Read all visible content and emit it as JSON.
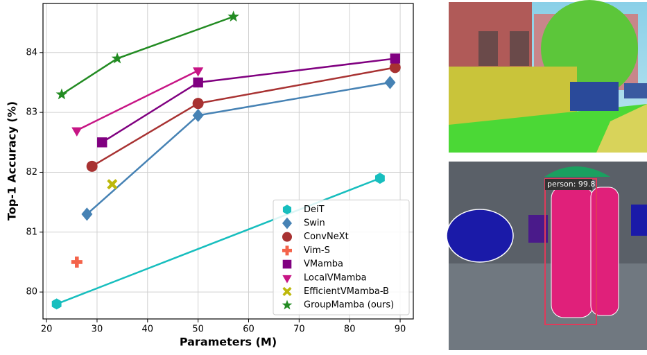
{
  "chart_data": {
    "type": "line",
    "xlabel": "Parameters (M)",
    "ylabel": "Top-1 Accuracy (%)",
    "xlim": [
      19.3,
      92.6
    ],
    "ylim": [
      79.55,
      84.82
    ],
    "xticks": [
      20,
      30,
      40,
      50,
      60,
      70,
      80,
      90
    ],
    "yticks": [
      80,
      81,
      82,
      83,
      84
    ],
    "grid": true,
    "legend": "lower right",
    "series": [
      {
        "name": "DeiT",
        "color": "#17bebe",
        "marker": "hexagon",
        "x": [
          22,
          86
        ],
        "values": [
          79.8,
          81.9
        ]
      },
      {
        "name": "Swin",
        "color": "#4682b4",
        "marker": "diamond",
        "x": [
          28,
          50,
          88
        ],
        "values": [
          81.3,
          82.95,
          83.5
        ]
      },
      {
        "name": "ConvNeXt",
        "color": "#a83232",
        "marker": "circle",
        "x": [
          29,
          50,
          89
        ],
        "values": [
          82.1,
          83.15,
          83.75
        ]
      },
      {
        "name": "Vim-S",
        "color": "#f4634a",
        "marker": "plus",
        "x": [
          26
        ],
        "values": [
          80.5
        ]
      },
      {
        "name": "VMamba",
        "color": "#800080",
        "marker": "square",
        "x": [
          31,
          50,
          89
        ],
        "values": [
          82.5,
          83.5,
          83.9
        ]
      },
      {
        "name": "LocalVMamba",
        "color": "#c71585",
        "marker": "triangle-down",
        "x": [
          26,
          50
        ],
        "values": [
          82.7,
          83.7
        ]
      },
      {
        "name": "EfficientVMamba-B",
        "color": "#bdb80b",
        "marker": "x",
        "x": [
          33
        ],
        "values": [
          81.8
        ]
      },
      {
        "name": "GroupMamba (ours)",
        "color": "#228b22",
        "marker": "star",
        "x": [
          23,
          34,
          57
        ],
        "values": [
          83.3,
          83.9,
          84.6
        ]
      }
    ]
  },
  "image_labels": [
    "person: 99.8"
  ]
}
